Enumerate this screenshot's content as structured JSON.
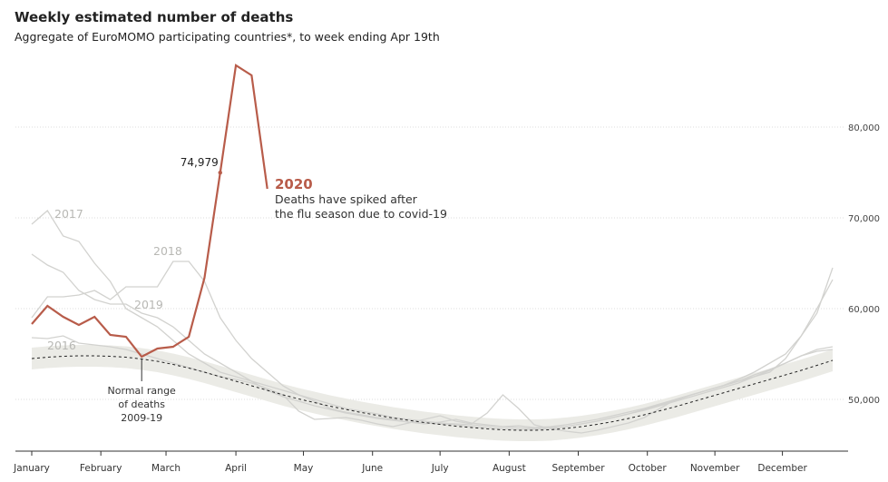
{
  "chart_data": {
    "type": "line",
    "title": "Weekly estimated number of deaths",
    "subtitle": "Aggregate of EuroMOMO participating countries*, to week ending Apr 19th",
    "x": [
      1,
      2,
      3,
      4,
      5,
      6,
      7,
      8,
      9,
      10,
      11,
      12,
      13,
      14,
      15,
      16,
      17,
      18,
      19,
      20,
      21,
      22,
      23,
      24,
      25,
      26,
      27,
      28,
      29,
      30,
      31,
      32,
      33,
      34,
      35,
      36,
      37,
      38,
      39,
      40,
      41,
      42,
      43,
      44,
      45,
      46,
      47,
      48,
      49,
      50,
      51,
      52
    ],
    "xlim": [
      1,
      52
    ],
    "xticks": [
      {
        "value": 1,
        "label": "January"
      },
      {
        "value": 5.4,
        "label": "February"
      },
      {
        "value": 9.55,
        "label": "March"
      },
      {
        "value": 14,
        "label": "April"
      },
      {
        "value": 18.3,
        "label": "May"
      },
      {
        "value": 22.7,
        "label": "June"
      },
      {
        "value": 27,
        "label": "July"
      },
      {
        "value": 31.4,
        "label": "August"
      },
      {
        "value": 35.8,
        "label": "September"
      },
      {
        "value": 40.2,
        "label": "October"
      },
      {
        "value": 44.5,
        "label": "November"
      },
      {
        "value": 48.8,
        "label": "December"
      }
    ],
    "ylim": [
      44300,
      88000
    ],
    "yticks": [
      {
        "value": 50000,
        "label": "50,000"
      },
      {
        "value": 60000,
        "label": "60,000"
      },
      {
        "value": 70000,
        "label": "70,000"
      },
      {
        "value": 80000,
        "label": "80,000"
      }
    ],
    "grid": true,
    "normal_range": {
      "color": "#ebebe6",
      "lower": [
        53300,
        53450,
        53550,
        53600,
        53600,
        53550,
        53450,
        53250,
        53000,
        52650,
        52250,
        51800,
        51300,
        50800,
        50300,
        49800,
        49300,
        48850,
        48450,
        48050,
        47700,
        47350,
        47050,
        46750,
        46500,
        46250,
        46050,
        45850,
        45700,
        45550,
        45450,
        45400,
        45400,
        45450,
        45600,
        45800,
        46050,
        46350,
        46700,
        47100,
        47550,
        48000,
        48500,
        49000,
        49500,
        50000,
        50500,
        51000,
        51500,
        52000,
        52550,
        53100
      ],
      "upper": [
        55700,
        55850,
        55950,
        56000,
        56000,
        55950,
        55850,
        55650,
        55400,
        55050,
        54650,
        54200,
        53700,
        53200,
        52700,
        52200,
        51700,
        51250,
        50850,
        50450,
        50100,
        49750,
        49450,
        49150,
        48900,
        48650,
        48450,
        48250,
        48100,
        47950,
        47850,
        47800,
        47800,
        47850,
        48000,
        48200,
        48450,
        48750,
        49100,
        49500,
        49950,
        50400,
        50900,
        51400,
        51900,
        52400,
        52900,
        53400,
        53900,
        54400,
        54950,
        55500
      ]
    },
    "baseline": {
      "color": "#222222",
      "values": [
        54500,
        54650,
        54750,
        54800,
        54800,
        54750,
        54650,
        54450,
        54200,
        53850,
        53450,
        53000,
        52500,
        52000,
        51500,
        51000,
        50500,
        50050,
        49650,
        49250,
        48900,
        48550,
        48250,
        47950,
        47700,
        47450,
        47250,
        47050,
        46900,
        46750,
        46650,
        46600,
        46600,
        46650,
        46800,
        47000,
        47250,
        47550,
        47900,
        48300,
        48750,
        49200,
        49700,
        50200,
        50700,
        51200,
        51700,
        52200,
        52700,
        53200,
        53750,
        54300
      ]
    },
    "range_label": [
      "Normal range",
      "of deaths",
      "2009-19"
    ],
    "annotation": [
      "Deaths have spiked after",
      "the flu season due to covid-19"
    ],
    "series": [
      {
        "name": "2020",
        "color": "#b85c4a",
        "values": [
          58300,
          60300,
          59100,
          58200,
          59100,
          57100,
          56900,
          54700,
          55600,
          55800,
          56900,
          63400,
          74979,
          86800,
          85700,
          73200,
          null,
          null,
          null,
          null,
          null,
          null,
          null,
          null,
          null,
          null,
          null,
          null,
          null,
          null,
          null,
          null,
          null,
          null,
          null,
          null,
          null,
          null,
          null,
          null,
          null,
          null,
          null,
          null,
          null,
          null,
          null,
          null,
          null,
          null,
          null,
          null
        ],
        "value_labels": [
          null,
          null,
          null,
          null,
          null,
          null,
          null,
          null,
          null,
          null,
          null,
          null,
          "74,979",
          null,
          null,
          null,
          null,
          null,
          null,
          null,
          null,
          null,
          null,
          null,
          null,
          null,
          null,
          null,
          null,
          null,
          null,
          null,
          null,
          null,
          null,
          null,
          null,
          null,
          null,
          null,
          null,
          null,
          null,
          null,
          null,
          null,
          null,
          null,
          null,
          null,
          null,
          null
        ]
      },
      {
        "name": "2017",
        "color": "#d2d2cf",
        "values": [
          69300,
          70800,
          68000,
          67400,
          65000,
          63000,
          60000,
          59000,
          58000,
          56500,
          55000,
          54000,
          53000,
          52500,
          52000,
          51500,
          51000,
          50500,
          50000,
          49500,
          49000,
          48700,
          48400,
          48000,
          47800,
          47600,
          47400,
          47300,
          47200,
          47100,
          47000,
          46900,
          46800,
          46900,
          47000,
          47300,
          47600,
          48000,
          48400,
          48900,
          49400,
          49900,
          50500,
          51000,
          51500,
          52200,
          53000,
          54000,
          55000,
          57000,
          59500,
          64500
        ]
      },
      {
        "name": "2018",
        "color": "#d2d2cf",
        "values": [
          59000,
          61300,
          61300,
          61500,
          62000,
          61000,
          62400,
          62400,
          62400,
          65200,
          65200,
          63000,
          59000,
          56500,
          54500,
          53000,
          51500,
          50500,
          49800,
          49000,
          48600,
          48300,
          48000,
          47800,
          47500,
          47400,
          47300,
          47200,
          47000,
          46900,
          46800,
          46700,
          46700,
          46800,
          47000,
          47300,
          47600,
          48000,
          48400,
          48800,
          49300,
          49800,
          50300,
          50800,
          51300,
          51800,
          52500,
          53200,
          54000,
          54800,
          55300,
          55500
        ]
      },
      {
        "name": "2019",
        "color": "#d2d2cf",
        "values": [
          66000,
          64800,
          64000,
          62000,
          61000,
          60500,
          60500,
          59500,
          59000,
          58000,
          56500,
          55000,
          54000,
          53000,
          52000,
          51000,
          50300,
          49800,
          49300,
          48900,
          48500,
          48200,
          47900,
          47700,
          47500,
          47300,
          47500,
          47800,
          47400,
          47200,
          47000,
          47100,
          46900,
          47000,
          47200,
          47500,
          47800,
          48200,
          48600,
          49000,
          49500,
          50000,
          50500,
          51000,
          51500,
          52000,
          52500,
          53000,
          54500,
          57000,
          60000,
          63200
        ]
      },
      {
        "name": "2016",
        "color": "#d2d2cf",
        "values": [
          56800,
          56700,
          57000,
          56200,
          56000,
          55800,
          55500,
          55000,
          54500,
          54000,
          53500,
          53000,
          52500,
          52200,
          51800,
          51200,
          50500,
          48700,
          47800,
          47900,
          48000,
          47700,
          47300,
          47000,
          47400,
          47800,
          48200,
          47600,
          47300,
          48500,
          50500,
          49000,
          47200,
          46800,
          46500,
          46300,
          46600,
          47000,
          47400,
          48000,
          49000,
          50000,
          50500,
          51000,
          51500,
          52000,
          52700,
          53300,
          54000,
          54800,
          55500,
          55800
        ]
      }
    ]
  }
}
